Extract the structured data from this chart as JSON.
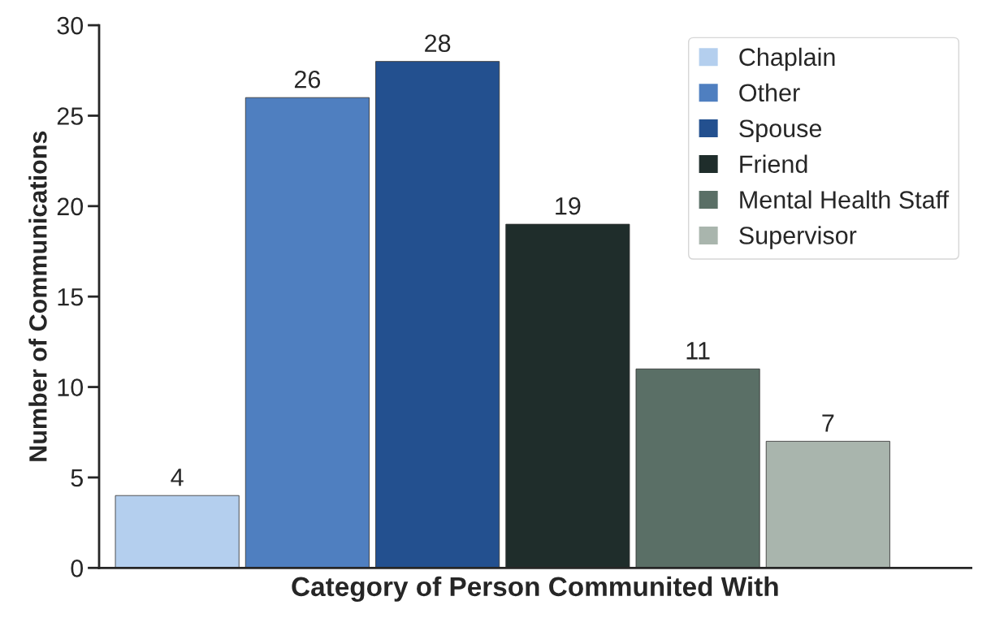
{
  "chart_data": {
    "type": "bar",
    "xlabel": "Category of Person Communited With",
    "ylabel": "Number of Communications",
    "categories": [
      null,
      null,
      null,
      null,
      null,
      null
    ],
    "series": [
      {
        "name": "Chaplain",
        "color": "#b4cfee",
        "values": [
          4,
          null,
          null,
          null,
          null,
          null
        ]
      },
      {
        "name": "Other",
        "color": "#4f7fc0",
        "values": [
          null,
          26,
          null,
          null,
          null,
          null
        ]
      },
      {
        "name": "Spouse",
        "color": "#23508f",
        "values": [
          null,
          null,
          28,
          null,
          null,
          null
        ]
      },
      {
        "name": "Friend",
        "color": "#1f2d2b",
        "values": [
          null,
          null,
          null,
          19,
          null,
          null
        ]
      },
      {
        "name": "Mental Health Staff",
        "color": "#5a6f66",
        "values": [
          null,
          null,
          null,
          null,
          11,
          null
        ]
      },
      {
        "name": "Supervisor",
        "color": "#a9b5ad",
        "values": [
          null,
          null,
          null,
          null,
          null,
          7
        ]
      }
    ],
    "ylim": [
      0,
      30
    ],
    "yticks": [
      0,
      5,
      10,
      15,
      20,
      25,
      30
    ],
    "data_labels": true,
    "legend": "top right",
    "grid": false
  }
}
